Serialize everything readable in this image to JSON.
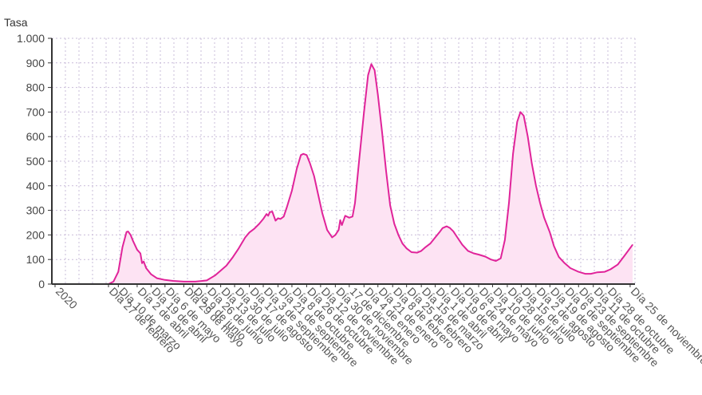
{
  "chart_data": {
    "type": "area",
    "ylabel": "Tasa",
    "xlabel": "",
    "ylim": [
      0,
      1000
    ],
    "yticks": [
      0,
      100,
      200,
      300,
      400,
      500,
      600,
      700,
      800,
      900,
      1000
    ],
    "ytick_labels": [
      "0",
      "100",
      "200",
      "300",
      "400",
      "500",
      "600",
      "700",
      "800",
      "900",
      "1.000"
    ],
    "grid": true,
    "x_date_start": "2020-02-27",
    "x_date_end": "2021-11-28",
    "x_tick_labels": [
      {
        "date": "2020-01-01",
        "label": "2020"
      },
      {
        "date": "2020-02-27",
        "label": "Día 27 de febrero"
      },
      {
        "date": "2020-03-10",
        "label": "Día 10 de marzo"
      },
      {
        "date": "2020-04-02",
        "label": "Día 2 de abril"
      },
      {
        "date": "2020-04-19",
        "label": "Día 19 de abril"
      },
      {
        "date": "2020-05-06",
        "label": "Día 6 de mayo"
      },
      {
        "date": "2020-05-29",
        "label": "Día 29 de mayo"
      },
      {
        "date": "2020-06-09",
        "label": "Día 9 de junio"
      },
      {
        "date": "2020-06-26",
        "label": "Día 26 de junio"
      },
      {
        "date": "2020-07-13",
        "label": "Día 13 de julio"
      },
      {
        "date": "2020-07-30",
        "label": "Día 30 de julio"
      },
      {
        "date": "2020-08-17",
        "label": "Día 17 de agosto"
      },
      {
        "date": "2020-09-03",
        "label": "Día 3 de septiembre"
      },
      {
        "date": "2020-09-21",
        "label": "Día 21 de septiembre"
      },
      {
        "date": "2020-10-08",
        "label": "Día 8 de octubre"
      },
      {
        "date": "2020-10-26",
        "label": "Día 26 de octubre"
      },
      {
        "date": "2020-11-12",
        "label": "Día 12 de noviembre"
      },
      {
        "date": "2020-11-30",
        "label": "Día 30 de noviembre"
      },
      {
        "date": "2020-12-17",
        "label": "17 de diciembre"
      },
      {
        "date": "2021-01-04",
        "label": "Día 4 de enero"
      },
      {
        "date": "2021-01-21",
        "label": "Día 21 de enero"
      },
      {
        "date": "2021-02-08",
        "label": "Día 8 de febrero"
      },
      {
        "date": "2021-02-25",
        "label": "Día 25 de febrero"
      },
      {
        "date": "2021-03-15",
        "label": "Día 15 de marzo"
      },
      {
        "date": "2021-04-01",
        "label": "Día 1 de abril"
      },
      {
        "date": "2021-04-19",
        "label": "Día 19 de abril"
      },
      {
        "date": "2021-05-06",
        "label": "Día 6 de mayo"
      },
      {
        "date": "2021-05-24",
        "label": "Día 24 de mayo"
      },
      {
        "date": "2021-06-10",
        "label": "Día 10 de junio"
      },
      {
        "date": "2021-06-28",
        "label": "Día 28 de junio"
      },
      {
        "date": "2021-07-15",
        "label": "Día 15 de julio"
      },
      {
        "date": "2021-08-02",
        "label": "Día 2 de agosto"
      },
      {
        "date": "2021-08-19",
        "label": "Día 19 de agosto"
      },
      {
        "date": "2021-09-06",
        "label": "Día 6 de septiembre"
      },
      {
        "date": "2021-09-23",
        "label": "Día 23 de septiembre"
      },
      {
        "date": "2021-10-11",
        "label": "Día 11 de octubre"
      },
      {
        "date": "2021-10-28",
        "label": "Día 28 de octubre"
      },
      {
        "date": "2021-11-25",
        "label": "Día 25 de noviembre"
      }
    ],
    "series": [
      {
        "color": "#e0249a",
        "fill": "#fde3f3",
        "points": [
          {
            "x": "2020-02-27",
            "y": 0
          },
          {
            "x": "2020-03-04",
            "y": 10
          },
          {
            "x": "2020-03-10",
            "y": 50
          },
          {
            "x": "2020-03-15",
            "y": 150
          },
          {
            "x": "2020-03-20",
            "y": 212
          },
          {
            "x": "2020-03-22",
            "y": 214
          },
          {
            "x": "2020-03-25",
            "y": 200
          },
          {
            "x": "2020-03-28",
            "y": 175
          },
          {
            "x": "2020-04-02",
            "y": 140
          },
          {
            "x": "2020-04-06",
            "y": 125
          },
          {
            "x": "2020-04-08",
            "y": 85
          },
          {
            "x": "2020-04-10",
            "y": 92
          },
          {
            "x": "2020-04-13",
            "y": 65
          },
          {
            "x": "2020-04-19",
            "y": 40
          },
          {
            "x": "2020-04-26",
            "y": 24
          },
          {
            "x": "2020-05-06",
            "y": 17
          },
          {
            "x": "2020-05-16",
            "y": 13
          },
          {
            "x": "2020-05-29",
            "y": 10
          },
          {
            "x": "2020-06-12",
            "y": 10
          },
          {
            "x": "2020-06-26",
            "y": 15
          },
          {
            "x": "2020-07-06",
            "y": 35
          },
          {
            "x": "2020-07-13",
            "y": 55
          },
          {
            "x": "2020-07-20",
            "y": 75
          },
          {
            "x": "2020-07-28",
            "y": 110
          },
          {
            "x": "2020-08-04",
            "y": 145
          },
          {
            "x": "2020-08-12",
            "y": 190
          },
          {
            "x": "2020-08-17",
            "y": 210
          },
          {
            "x": "2020-08-23",
            "y": 225
          },
          {
            "x": "2020-08-29",
            "y": 245
          },
          {
            "x": "2020-09-03",
            "y": 265
          },
          {
            "x": "2020-09-07",
            "y": 285
          },
          {
            "x": "2020-09-09",
            "y": 278
          },
          {
            "x": "2020-09-11",
            "y": 293
          },
          {
            "x": "2020-09-14",
            "y": 295
          },
          {
            "x": "2020-09-18",
            "y": 258
          },
          {
            "x": "2020-09-21",
            "y": 268
          },
          {
            "x": "2020-09-24",
            "y": 265
          },
          {
            "x": "2020-09-28",
            "y": 275
          },
          {
            "x": "2020-10-02",
            "y": 315
          },
          {
            "x": "2020-10-08",
            "y": 380
          },
          {
            "x": "2020-10-14",
            "y": 470
          },
          {
            "x": "2020-10-19",
            "y": 525
          },
          {
            "x": "2020-10-22",
            "y": 530
          },
          {
            "x": "2020-10-26",
            "y": 525
          },
          {
            "x": "2020-10-30",
            "y": 492
          },
          {
            "x": "2020-11-04",
            "y": 440
          },
          {
            "x": "2020-11-09",
            "y": 365
          },
          {
            "x": "2020-11-14",
            "y": 290
          },
          {
            "x": "2020-11-20",
            "y": 220
          },
          {
            "x": "2020-11-26",
            "y": 190
          },
          {
            "x": "2020-11-30",
            "y": 200
          },
          {
            "x": "2020-12-04",
            "y": 220
          },
          {
            "x": "2020-12-06",
            "y": 260
          },
          {
            "x": "2020-12-08",
            "y": 240
          },
          {
            "x": "2020-12-12",
            "y": 278
          },
          {
            "x": "2020-12-17",
            "y": 270
          },
          {
            "x": "2020-12-21",
            "y": 275
          },
          {
            "x": "2020-12-24",
            "y": 330
          },
          {
            "x": "2020-12-29",
            "y": 500
          },
          {
            "x": "2021-01-04",
            "y": 700
          },
          {
            "x": "2021-01-09",
            "y": 850
          },
          {
            "x": "2021-01-13",
            "y": 895
          },
          {
            "x": "2021-01-17",
            "y": 870
          },
          {
            "x": "2021-01-21",
            "y": 770
          },
          {
            "x": "2021-01-26",
            "y": 620
          },
          {
            "x": "2021-01-31",
            "y": 460
          },
          {
            "x": "2021-02-05",
            "y": 320
          },
          {
            "x": "2021-02-10",
            "y": 245
          },
          {
            "x": "2021-02-15",
            "y": 200
          },
          {
            "x": "2021-02-20",
            "y": 165
          },
          {
            "x": "2021-02-25",
            "y": 145
          },
          {
            "x": "2021-03-03",
            "y": 130
          },
          {
            "x": "2021-03-10",
            "y": 128
          },
          {
            "x": "2021-03-15",
            "y": 135
          },
          {
            "x": "2021-03-20",
            "y": 150
          },
          {
            "x": "2021-03-26",
            "y": 165
          },
          {
            "x": "2021-04-01",
            "y": 190
          },
          {
            "x": "2021-04-06",
            "y": 210
          },
          {
            "x": "2021-04-10",
            "y": 228
          },
          {
            "x": "2021-04-15",
            "y": 235
          },
          {
            "x": "2021-04-19",
            "y": 228
          },
          {
            "x": "2021-04-23",
            "y": 215
          },
          {
            "x": "2021-04-28",
            "y": 190
          },
          {
            "x": "2021-05-04",
            "y": 160
          },
          {
            "x": "2021-05-11",
            "y": 135
          },
          {
            "x": "2021-05-18",
            "y": 125
          },
          {
            "x": "2021-05-24",
            "y": 120
          },
          {
            "x": "2021-06-01",
            "y": 112
          },
          {
            "x": "2021-06-08",
            "y": 100
          },
          {
            "x": "2021-06-14",
            "y": 94
          },
          {
            "x": "2021-06-20",
            "y": 105
          },
          {
            "x": "2021-06-25",
            "y": 180
          },
          {
            "x": "2021-06-30",
            "y": 330
          },
          {
            "x": "2021-07-05",
            "y": 530
          },
          {
            "x": "2021-07-10",
            "y": 660
          },
          {
            "x": "2021-07-14",
            "y": 700
          },
          {
            "x": "2021-07-18",
            "y": 685
          },
          {
            "x": "2021-07-23",
            "y": 600
          },
          {
            "x": "2021-07-28",
            "y": 490
          },
          {
            "x": "2021-08-02",
            "y": 400
          },
          {
            "x": "2021-08-07",
            "y": 330
          },
          {
            "x": "2021-08-12",
            "y": 270
          },
          {
            "x": "2021-08-19",
            "y": 210
          },
          {
            "x": "2021-08-24",
            "y": 155
          },
          {
            "x": "2021-08-30",
            "y": 110
          },
          {
            "x": "2021-09-06",
            "y": 85
          },
          {
            "x": "2021-09-13",
            "y": 65
          },
          {
            "x": "2021-09-23",
            "y": 50
          },
          {
            "x": "2021-10-01",
            "y": 42
          },
          {
            "x": "2021-10-08",
            "y": 42
          },
          {
            "x": "2021-10-16",
            "y": 48
          },
          {
            "x": "2021-10-25",
            "y": 50
          },
          {
            "x": "2021-11-01",
            "y": 60
          },
          {
            "x": "2021-11-10",
            "y": 80
          },
          {
            "x": "2021-11-18",
            "y": 115
          },
          {
            "x": "2021-11-28",
            "y": 160
          }
        ]
      }
    ]
  }
}
